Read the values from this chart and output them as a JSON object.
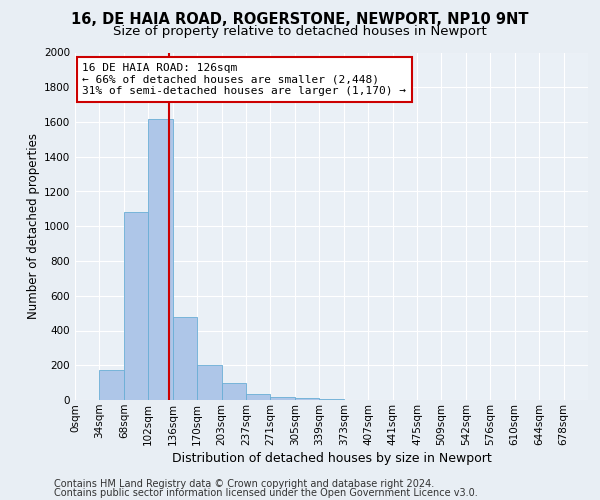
{
  "title_line1": "16, DE HAIA ROAD, ROGERSTONE, NEWPORT, NP10 9NT",
  "title_line2": "Size of property relative to detached houses in Newport",
  "xlabel": "Distribution of detached houses by size in Newport",
  "ylabel": "Number of detached properties",
  "bins": [
    "0sqm",
    "34sqm",
    "68sqm",
    "102sqm",
    "136sqm",
    "170sqm",
    "203sqm",
    "237sqm",
    "271sqm",
    "305sqm",
    "339sqm",
    "373sqm",
    "407sqm",
    "441sqm",
    "475sqm",
    "509sqm",
    "542sqm",
    "576sqm",
    "610sqm",
    "644sqm",
    "678sqm"
  ],
  "values": [
    0,
    170,
    1080,
    1620,
    480,
    200,
    100,
    35,
    20,
    10,
    5,
    2,
    1,
    0,
    0,
    0,
    0,
    0,
    0,
    0,
    0
  ],
  "bar_color": "#aec6e8",
  "bar_edge_color": "#6aaed6",
  "vline_color": "#cc0000",
  "annotation_text": "16 DE HAIA ROAD: 126sqm\n← 66% of detached houses are smaller (2,448)\n31% of semi-detached houses are larger (1,170) →",
  "annotation_box_color": "#ffffff",
  "annotation_box_edge_color": "#cc0000",
  "ylim": [
    0,
    2000
  ],
  "yticks": [
    0,
    200,
    400,
    600,
    800,
    1000,
    1200,
    1400,
    1600,
    1800,
    2000
  ],
  "bg_color": "#e8eef4",
  "plot_bg_color": "#eaf0f6",
  "footer_line1": "Contains HM Land Registry data © Crown copyright and database right 2024.",
  "footer_line2": "Contains public sector information licensed under the Open Government Licence v3.0.",
  "title_fontsize": 10.5,
  "subtitle_fontsize": 9.5,
  "annotation_fontsize": 8,
  "ylabel_fontsize": 8.5,
  "xlabel_fontsize": 9,
  "footer_fontsize": 7,
  "tick_fontsize": 7.5
}
